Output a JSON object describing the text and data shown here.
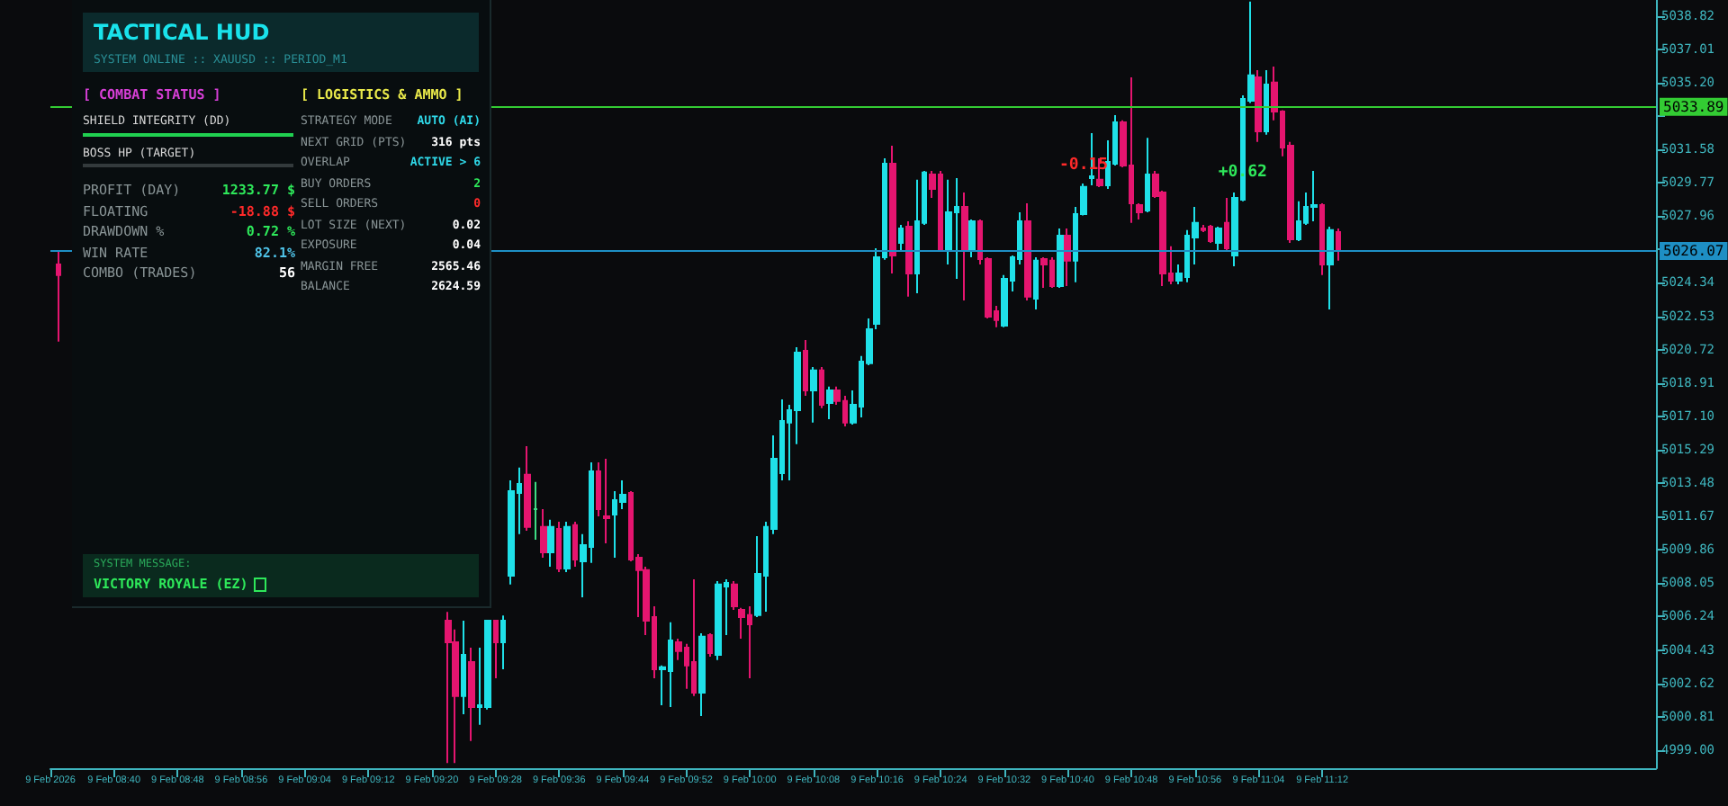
{
  "chart_data": [
    {
      "type": "candlestick",
      "xlim": [
        "2026-02-09T08:32",
        "2026-02-09T11:54"
      ],
      "ylim": [
        4998.02,
        5039.68
      ],
      "xticks": [
        {
          "value": "2026-02-09T08:32",
          "label": "9 Feb 2026"
        },
        {
          "value": "2026-02-09T08:40",
          "label": "9 Feb 08:40"
        },
        {
          "value": "2026-02-09T08:48",
          "label": "9 Feb 08:48"
        },
        {
          "value": "2026-02-09T08:56",
          "label": "9 Feb 08:56"
        },
        {
          "value": "2026-02-09T09:04",
          "label": "9 Feb 09:04"
        },
        {
          "value": "2026-02-09T09:12",
          "label": "9 Feb 09:12"
        },
        {
          "value": "2026-02-09T09:20",
          "label": "9 Feb 09:20"
        },
        {
          "value": "2026-02-09T09:28",
          "label": "9 Feb 09:28"
        },
        {
          "value": "2026-02-09T09:36",
          "label": "9 Feb 09:36"
        },
        {
          "value": "2026-02-09T09:44",
          "label": "9 Feb 09:44"
        },
        {
          "value": "2026-02-09T09:52",
          "label": "9 Feb 09:52"
        },
        {
          "value": "2026-02-09T10:00",
          "label": "9 Feb 10:00"
        },
        {
          "value": "2026-02-09T10:08",
          "label": "9 Feb 10:08"
        },
        {
          "value": "2026-02-09T10:16",
          "label": "9 Feb 10:16"
        },
        {
          "value": "2026-02-09T10:24",
          "label": "9 Feb 10:24"
        },
        {
          "value": "2026-02-09T10:32",
          "label": "9 Feb 10:32"
        },
        {
          "value": "2026-02-09T10:40",
          "label": "9 Feb 10:40"
        },
        {
          "value": "2026-02-09T10:48",
          "label": "9 Feb 10:48"
        },
        {
          "value": "2026-02-09T10:56",
          "label": "9 Feb 10:56"
        },
        {
          "value": "2026-02-09T11:04",
          "label": "9 Feb 11:04"
        },
        {
          "value": "2026-02-09T11:12",
          "label": "9 Feb 11:12"
        }
      ],
      "yticks": [
        {
          "value": 4999,
          "label": "4999.00"
        },
        5000.81,
        5002.62,
        5004.43,
        5006.24,
        5008.05,
        5009.86,
        5011.67,
        5013.48,
        5015.29,
        {
          "value": 5017.1,
          "label": "5017.10"
        },
        5018.91,
        5020.72,
        5022.53,
        5024.34,
        {
          "value": 5026.15,
          "label": null
        },
        5027.96,
        5029.77,
        5031.58,
        {
          "value": 5033.39,
          "label": null
        },
        {
          "value": 5035.2,
          "label": "5035.20"
        },
        5037.01,
        5038.82
      ],
      "x": [
        "2026-02-09T08:33",
        "2026-02-09T09:22",
        "2026-02-09T09:23",
        "2026-02-09T09:24",
        "2026-02-09T09:25",
        "2026-02-09T09:26",
        "2026-02-09T09:27",
        "2026-02-09T09:28",
        "2026-02-09T09:29",
        "2026-02-09T09:30",
        "2026-02-09T09:31",
        "2026-02-09T09:32",
        "2026-02-09T09:33",
        "2026-02-09T09:34",
        "2026-02-09T09:35",
        "2026-02-09T09:36",
        "2026-02-09T09:37",
        "2026-02-09T09:38",
        "2026-02-09T09:39",
        "2026-02-09T09:40",
        "2026-02-09T09:41",
        "2026-02-09T09:42",
        "2026-02-09T09:43",
        "2026-02-09T09:44",
        "2026-02-09T09:45",
        "2026-02-09T09:46",
        "2026-02-09T09:47",
        "2026-02-09T09:48",
        "2026-02-09T09:49",
        "2026-02-09T09:50",
        "2026-02-09T09:51",
        "2026-02-09T09:52",
        "2026-02-09T09:53",
        "2026-02-09T09:54",
        "2026-02-09T09:55",
        "2026-02-09T09:56",
        "2026-02-09T09:57",
        "2026-02-09T09:58",
        "2026-02-09T09:59",
        "2026-02-09T10:00",
        "2026-02-09T10:01",
        "2026-02-09T10:02",
        "2026-02-09T10:03",
        "2026-02-09T10:04",
        "2026-02-09T10:05",
        "2026-02-09T10:06",
        "2026-02-09T10:07",
        "2026-02-09T10:08",
        "2026-02-09T10:09",
        "2026-02-09T10:10",
        "2026-02-09T10:11",
        "2026-02-09T10:12",
        "2026-02-09T10:13",
        "2026-02-09T10:14",
        "2026-02-09T10:15",
        "2026-02-09T10:16",
        "2026-02-09T10:17",
        "2026-02-09T10:18",
        "2026-02-09T10:19",
        "2026-02-09T10:20",
        "2026-02-09T10:21",
        "2026-02-09T10:22",
        "2026-02-09T10:23",
        "2026-02-09T10:24",
        "2026-02-09T10:25",
        "2026-02-09T10:26",
        "2026-02-09T10:27",
        "2026-02-09T10:28",
        "2026-02-09T10:29",
        "2026-02-09T10:30",
        "2026-02-09T10:31",
        "2026-02-09T10:32",
        "2026-02-09T10:33",
        "2026-02-09T10:34",
        "2026-02-09T10:35",
        "2026-02-09T10:36",
        "2026-02-09T10:37",
        "2026-02-09T10:38",
        "2026-02-09T10:39",
        "2026-02-09T10:40",
        "2026-02-09T10:41",
        "2026-02-09T10:42",
        "2026-02-09T10:43",
        "2026-02-09T10:44",
        "2026-02-09T10:45",
        "2026-02-09T10:46",
        "2026-02-09T10:47",
        "2026-02-09T10:48",
        "2026-02-09T10:49",
        "2026-02-09T10:50",
        "2026-02-09T10:51",
        "2026-02-09T10:52",
        "2026-02-09T10:53",
        "2026-02-09T10:54",
        "2026-02-09T10:55",
        "2026-02-09T10:56",
        "2026-02-09T10:57",
        "2026-02-09T10:58",
        "2026-02-09T10:59",
        "2026-02-09T11:00",
        "2026-02-09T11:01",
        "2026-02-09T11:02",
        "2026-02-09T11:03",
        "2026-02-09T11:04",
        "2026-02-09T11:05",
        "2026-02-09T11:06",
        "2026-02-09T11:07",
        "2026-02-09T11:08",
        "2026-02-09T11:09",
        "2026-02-09T11:10",
        "2026-02-09T11:11",
        "2026-02-09T11:12",
        "2026-02-09T11:13",
        "2026-02-09T11:14"
      ],
      "ohlc": [
        [
          5025.34,
          5026.02,
          5021.15,
          5024.76
        ],
        [
          5006.02,
          5006.5,
          4998.3,
          5004.85
        ],
        [
          5004.85,
          5005.54,
          4998.3,
          5001.93
        ],
        [
          5001.93,
          5006.02,
          5000.95,
          5004.17
        ],
        [
          5003.78,
          5004.56,
          4999.49,
          5001.34
        ],
        [
          5001.34,
          5004.56,
          5000.37,
          5001.44
        ],
        [
          5001.34,
          5006.02,
          5001.2,
          5006.02
        ],
        [
          5006.02,
          5006.02,
          5002.9,
          5004.85
        ],
        [
          5004.85,
          5006.3,
          5003.39,
          5006.02
        ],
        [
          5008.46,
          5013.63,
          5007.98,
          5013.05
        ],
        [
          5012.95,
          5014.32,
          5010.71,
          5013.44
        ],
        [
          5013.93,
          5015.49,
          5010.9,
          5011.1
        ],
        [
          5012.07,
          5013.54,
          5010.41,
          5012.07
        ],
        [
          5011.1,
          5012.07,
          5009.44,
          5009.73
        ],
        [
          5009.73,
          5011.49,
          5008.95,
          5011.1
        ],
        [
          5011.0,
          5011.39,
          5008.66,
          5008.85
        ],
        [
          5008.85,
          5011.39,
          5008.66,
          5011.1
        ],
        [
          5011.2,
          5011.39,
          5008.95,
          5009.34
        ],
        [
          5009.24,
          5010.71,
          5007.29,
          5010.12
        ],
        [
          5010.02,
          5014.61,
          5009.15,
          5014.12
        ],
        [
          5014.12,
          5014.61,
          5011.68,
          5012.07
        ],
        [
          5011.68,
          5014.8,
          5010.22,
          5011.58
        ],
        [
          5011.78,
          5013.05,
          5009.44,
          5012.56
        ],
        [
          5012.46,
          5013.63,
          5012.07,
          5012.85
        ],
        [
          5012.95,
          5013.05,
          5009.24,
          5009.34
        ],
        [
          5009.44,
          5009.63,
          5006.22,
          5008.76
        ],
        [
          5008.76,
          5008.95,
          5005.24,
          5006.02
        ],
        [
          5006.22,
          5006.8,
          5002.9,
          5003.39
        ],
        [
          5003.39,
          5003.59,
          5001.44,
          5003.49
        ],
        [
          5003.29,
          5005.93,
          5001.34,
          5004.95
        ],
        [
          5004.85,
          5005.05,
          5003.88,
          5004.37
        ],
        [
          5004.56,
          5004.76,
          5002.32,
          5003.59
        ],
        [
          5003.78,
          5008.27,
          5001.93,
          5002.12
        ],
        [
          5002.12,
          5005.34,
          5000.85,
          5005.15
        ],
        [
          5005.24,
          5005.34,
          5004.07,
          5004.27
        ],
        [
          5004.17,
          5008.17,
          5003.88,
          5007.98
        ],
        [
          5007.88,
          5008.27,
          5005.24,
          5008.07
        ],
        [
          5007.98,
          5008.17,
          5006.61,
          5006.8
        ],
        [
          5006.61,
          5006.71,
          5005.05,
          5006.22
        ],
        [
          5006.32,
          5006.8,
          5002.9,
          5005.83
        ],
        [
          5006.32,
          5010.61,
          5006.22,
          5008.56
        ],
        [
          5008.46,
          5011.39,
          5006.51,
          5011.1
        ],
        [
          5011.0,
          5016.07,
          5010.71,
          5014.8
        ],
        [
          5014.02,
          5018.02,
          5013.63,
          5016.85
        ],
        [
          5016.76,
          5017.73,
          5013.63,
          5017.44
        ],
        [
          5017.44,
          5020.85,
          5015.59,
          5020.56
        ],
        [
          5020.66,
          5021.24,
          5018.22,
          5018.51
        ],
        [
          5018.51,
          5019.78,
          5016.76,
          5019.59
        ],
        [
          5019.59,
          5019.78,
          5017.54,
          5017.73
        ],
        [
          5017.83,
          5018.71,
          5016.95,
          5018.51
        ],
        [
          5018.51,
          5018.71,
          5017.73,
          5017.93
        ],
        [
          5017.93,
          5018.22,
          5016.56,
          5016.76
        ],
        [
          5016.76,
          5018.51,
          5016.66,
          5017.73
        ],
        [
          5017.63,
          5020.37,
          5017.05,
          5020.07
        ],
        [
          5019.98,
          5022.41,
          5019.88,
          5021.83
        ],
        [
          5022.12,
          5026.22,
          5021.83,
          5025.73
        ],
        [
          5025.73,
          5031.1,
          5025.6,
          5030.8
        ],
        [
          5030.8,
          5031.78,
          5024.85,
          5025.83
        ],
        [
          5026.51,
          5027.49,
          5026.02,
          5027.29
        ],
        [
          5027.39,
          5027.68,
          5023.59,
          5024.85
        ],
        [
          5024.85,
          5029.93,
          5023.78,
          5027.68
        ],
        [
          5027.59,
          5030.41,
          5027.49,
          5030.32
        ],
        [
          5030.22,
          5030.41,
          5028.95,
          5029.44
        ],
        [
          5030.22,
          5030.41,
          5026.02,
          5026.12
        ],
        [
          5026.12,
          5029.93,
          5025.34,
          5028.17
        ],
        [
          5028.17,
          5030.02,
          5024.56,
          5028.46
        ],
        [
          5028.46,
          5029.24,
          5023.39,
          5026.12
        ],
        [
          5026.12,
          5027.78,
          5025.73,
          5027.68
        ],
        [
          5027.68,
          5027.78,
          5025.34,
          5025.63
        ],
        [
          5025.63,
          5025.73,
          5022.41,
          5022.51
        ],
        [
          5022.8,
          5023.1,
          5021.93,
          5022.32
        ],
        [
          5022.02,
          5024.76,
          5021.93,
          5024.56
        ],
        [
          5024.46,
          5025.83,
          5023.88,
          5025.73
        ],
        [
          5025.63,
          5028.17,
          5025.34,
          5027.68
        ],
        [
          5027.68,
          5028.66,
          5023.39,
          5023.59
        ],
        [
          5023.49,
          5025.73,
          5022.9,
          5025.54
        ],
        [
          5025.63,
          5025.73,
          5024.07,
          5025.34
        ],
        [
          5025.54,
          5025.73,
          5024.07,
          5024.17
        ],
        [
          5024.17,
          5027.29,
          5024.07,
          5026.9
        ],
        [
          5026.9,
          5027.29,
          5024.17,
          5025.54
        ],
        [
          5025.54,
          5028.46,
          5024.37,
          5028.07
        ],
        [
          5028.07,
          5029.73,
          5028.0,
          5029.54
        ],
        [
          5030.02,
          5032.46,
          5029.63,
          5030.12
        ],
        [
          5029.93,
          5031.1,
          5029.53,
          5029.63
        ],
        [
          5029.63,
          5032.07,
          5029.44,
          5030.9
        ],
        [
          5030.8,
          5033.44,
          5030.71,
          5033.05
        ],
        [
          5033.05,
          5033.15,
          5030.61,
          5030.71
        ],
        [
          5030.71,
          5035.49,
          5027.59,
          5028.66
        ],
        [
          5028.56,
          5028.66,
          5027.78,
          5028.17
        ],
        [
          5028.27,
          5032.2,
          5028.17,
          5030.22
        ],
        [
          5030.22,
          5030.41,
          5028.95,
          5029.05
        ],
        [
          5029.24,
          5029.34,
          5024.17,
          5024.85
        ],
        [
          5024.85,
          5026.32,
          5024.27,
          5024.46
        ],
        [
          5024.46,
          5025.34,
          5024.27,
          5024.85
        ],
        [
          5024.66,
          5027.2,
          5024.37,
          5026.9
        ],
        [
          5026.8,
          5028.46,
          5025.34,
          5027.59
        ],
        [
          5027.29,
          5027.49,
          5027.1,
          5027.2
        ],
        [
          5027.39,
          5027.49,
          5026.51,
          5026.61
        ],
        [
          5026.51,
          5027.39,
          5026.02,
          5027.29
        ],
        [
          5027.59,
          5028.95,
          5026.12,
          5026.22
        ],
        [
          5025.83,
          5029.24,
          5025.24,
          5028.95
        ],
        [
          5028.85,
          5034.51,
          5028.76,
          5034.32
        ],
        [
          5034.22,
          5039.6,
          5034.1,
          5035.59
        ],
        [
          5035.49,
          5035.88,
          5031.98,
          5032.56
        ],
        [
          5032.56,
          5035.88,
          5032.37,
          5035.1
        ],
        [
          5035.2,
          5036.07,
          5033.15,
          5033.63
        ],
        [
          5033.63,
          5033.7,
          5031.2,
          5031.68
        ],
        [
          5031.78,
          5031.98,
          5026.51,
          5026.71
        ],
        [
          5026.71,
          5028.76,
          5026.61,
          5027.68
        ],
        [
          5027.59,
          5029.24,
          5027.49,
          5028.46
        ],
        [
          5028.46,
          5030.41,
          5027.68,
          5028.56
        ],
        [
          5028.56,
          5028.66,
          5024.76,
          5025.34
        ],
        [
          5025.34,
          5027.39,
          5022.9,
          5027.2
        ],
        [
          5027.1,
          5027.29,
          5025.54,
          5026.12
        ]
      ],
      "colors": [
        "#e5156f",
        "#e5156f",
        "#e5156f",
        "#1fe0e8",
        "#e5156f",
        "#1fe0e8",
        "#1fe0e8",
        "#e5156f",
        "#1fe0e8",
        "#1fe0e8",
        "#1fe0e8",
        "#e5156f",
        "#3ddc84",
        "#e5156f",
        "#1fe0e8",
        "#e5156f",
        "#1fe0e8",
        "#e5156f",
        "#1fe0e8",
        "#1fe0e8",
        "#e5156f",
        "#e5156f",
        "#1fe0e8",
        "#1fe0e8",
        "#e5156f",
        "#e5156f",
        "#e5156f",
        "#e5156f",
        "#1fe0e8",
        "#1fe0e8",
        "#e5156f",
        "#e5156f",
        "#e5156f",
        "#1fe0e8",
        "#e5156f",
        "#1fe0e8",
        "#1fe0e8",
        "#e5156f",
        "#e5156f",
        "#e5156f",
        "#1fe0e8",
        "#1fe0e8",
        "#1fe0e8",
        "#1fe0e8",
        "#1fe0e8",
        "#1fe0e8",
        "#e5156f",
        "#1fe0e8",
        "#e5156f",
        "#1fe0e8",
        "#e5156f",
        "#e5156f",
        "#1fe0e8",
        "#1fe0e8",
        "#1fe0e8",
        "#1fe0e8",
        "#1fe0e8",
        "#e5156f",
        "#1fe0e8",
        "#e5156f",
        "#1fe0e8",
        "#1fe0e8",
        "#e5156f",
        "#e5156f",
        "#1fe0e8",
        "#1fe0e8",
        "#e5156f",
        "#1fe0e8",
        "#e5156f",
        "#e5156f",
        "#e5156f",
        "#1fe0e8",
        "#1fe0e8",
        "#1fe0e8",
        "#e5156f",
        "#1fe0e8",
        "#e5156f",
        "#e5156f",
        "#1fe0e8",
        "#e5156f",
        "#1fe0e8",
        "#1fe0e8",
        "#1fe0e8",
        "#e5156f",
        "#1fe0e8",
        "#1fe0e8",
        "#e5156f",
        "#e5156f",
        "#e5156f",
        "#1fe0e8",
        "#e5156f",
        "#e5156f",
        "#e5156f",
        "#1fe0e8",
        "#1fe0e8",
        "#1fe0e8",
        "#e5156f",
        "#e5156f",
        "#1fe0e8",
        "#e5156f",
        "#1fe0e8",
        "#1fe0e8",
        "#1fe0e8",
        "#e5156f",
        "#1fe0e8",
        "#e5156f",
        "#e5156f",
        "#e5156f",
        "#1fe0e8",
        "#1fe0e8",
        "#1fe0e8",
        "#e5156f",
        "#1fe0e8",
        "#e5156f"
      ],
      "ref_lines": [
        {
          "axis": "y",
          "value": 5033.89,
          "label": "5033.89",
          "color": "#33cc33"
        },
        {
          "axis": "y",
          "value": 5026.07,
          "label": "5026.07",
          "color": "#1e8fc4"
        }
      ],
      "annotations": [
        {
          "text": "-0.15",
          "x": "2026-02-09T10:42",
          "y": 5030.71
        },
        {
          "text": "+0.62",
          "x": "2026-02-09T11:02",
          "y": 5030.32
        }
      ]
    },
    {
      "type": "other",
      "title": "TACTICAL HUD",
      "subtitle": "SYSTEM ONLINE :: XAUUSD :: PERIOD_M1",
      "annotations": [
        "[ COMBAT STATUS ]",
        "[ LOGISTICS & AMMO ]",
        "SHIELD INTEGRITY (DD)",
        "BOSS HP (TARGET)",
        "PROFIT (DAY)",
        "1233.77 $",
        "FLOATING",
        "-18.88 $",
        "DRAWDOWN %",
        "0.72 %",
        "WIN RATE",
        "82.1%",
        "COMBO (TRADES)",
        "56",
        "STRATEGY MODE",
        "AUTO (AI)",
        "NEXT GRID (PTS)",
        "316 pts",
        "OVERLAP",
        "ACTIVE > 6",
        "BUY ORDERS",
        "2",
        "SELL ORDERS",
        "0",
        "LOT SIZE (NEXT)",
        "0.02",
        "EXPOSURE",
        "0.04",
        "MARGIN FREE",
        "2565.46",
        "BALANCE",
        "2624.59",
        "SYSTEM MESSAGE:",
        "VICTORY ROYALE (EZ)"
      ]
    }
  ]
}
